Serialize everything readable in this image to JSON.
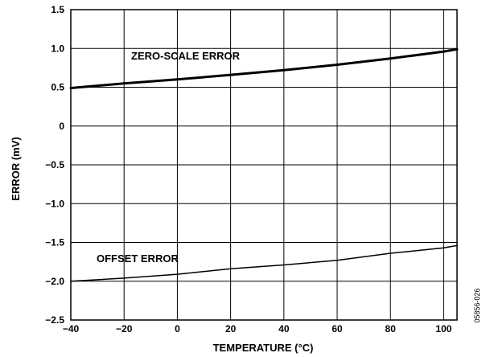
{
  "chart_data": {
    "type": "line",
    "title": "",
    "xlabel": "TEMPERATURE (°C)",
    "ylabel": "ERROR (mV)",
    "xlim": [
      -40,
      105
    ],
    "ylim": [
      -2.5,
      1.5
    ],
    "grid": true,
    "legend": "none",
    "x_ticks": [
      -40,
      -20,
      0,
      20,
      40,
      60,
      80,
      100
    ],
    "x_tick_labels": [
      "−40",
      "−20",
      "0",
      "20",
      "40",
      "60",
      "80",
      "100"
    ],
    "y_ticks": [
      1.5,
      1.0,
      0.5,
      0,
      -0.5,
      -1.0,
      -1.5,
      -2.0,
      -2.5
    ],
    "y_tick_labels": [
      "1.5",
      "1.0",
      "0.5",
      "0",
      "−0.5",
      "−1.0",
      "−1.5",
      "−2.0",
      "−2.5"
    ],
    "series": [
      {
        "label": "ZERO-SCALE ERROR",
        "color": "#000000",
        "x": [
          -40,
          -20,
          0,
          20,
          40,
          60,
          80,
          100,
          105
        ],
        "y": [
          0.49,
          0.55,
          0.6,
          0.66,
          0.72,
          0.79,
          0.87,
          0.96,
          0.99
        ]
      },
      {
        "label": "OFFSET ERROR",
        "color": "#000000",
        "x": [
          -40,
          -20,
          0,
          20,
          40,
          60,
          80,
          100,
          105
        ],
        "y": [
          -2.0,
          -1.96,
          -1.91,
          -1.84,
          -1.79,
          -1.73,
          -1.64,
          -1.57,
          -1.54
        ]
      }
    ],
    "figure_id": "05856-026"
  }
}
